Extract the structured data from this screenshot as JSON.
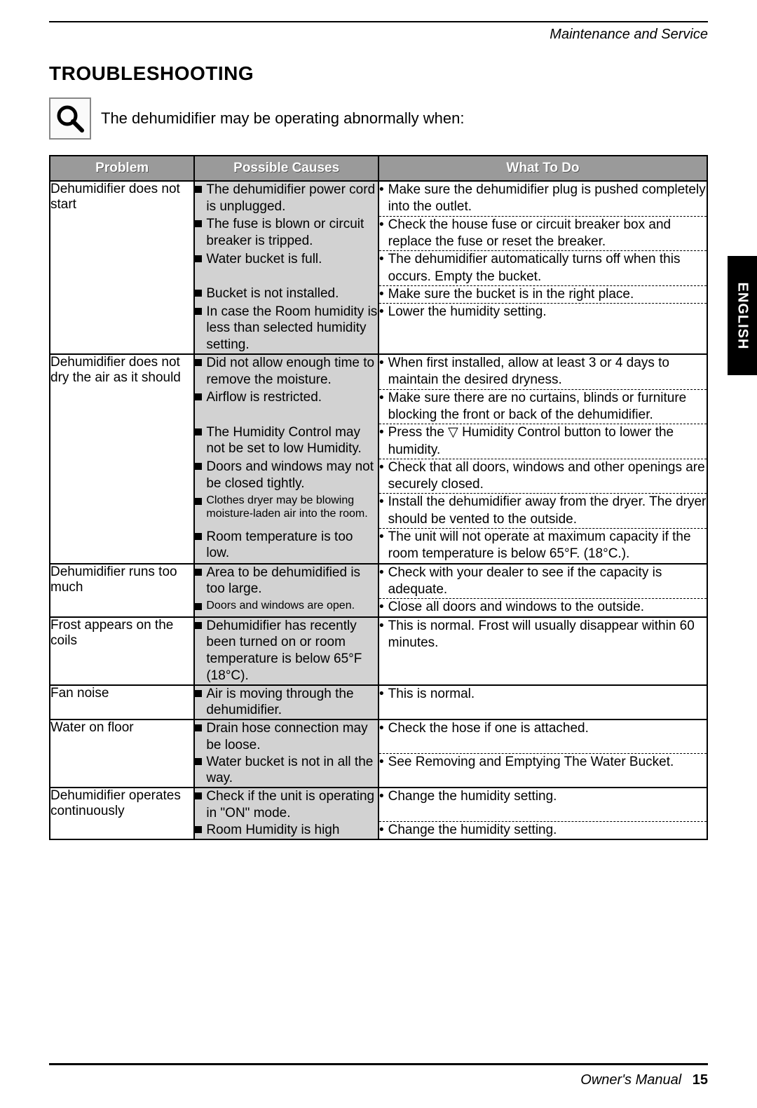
{
  "header": {
    "section": "Maintenance and Service"
  },
  "title": "TROUBLESHOOTING",
  "intro": "The dehumidifier may be operating abnormally when:",
  "sideTab": "ENGLISH",
  "columns": [
    "Problem",
    "Possible Causes",
    "What To Do"
  ],
  "colors": {
    "headerBg": "#9a9a9a",
    "headerText": "#ffffff",
    "causeBg": "#d2d2d2",
    "pageBg": "#ffffff",
    "text": "#000000",
    "dash": "#000000"
  },
  "fonts": {
    "title_pt": 28,
    "body_pt": 19,
    "header_pt": 19,
    "problem_pt": 20,
    "intro_pt": 22,
    "footer_pt": 20
  },
  "groups": [
    {
      "problem": "Dehumidifier does not start",
      "rows": [
        {
          "cause": "The dehumidifier power cord is unplugged.",
          "action": "Make sure the dehumidifier plug is pushed completely into the outlet."
        },
        {
          "cause": "The fuse is blown or circuit breaker is tripped.",
          "action": "Check the house fuse or circuit breaker box and replace the fuse or reset the breaker."
        },
        {
          "cause": "Water bucket is full.",
          "action": "The dehumidifier automatically turns off when this occurs. Empty the bucket."
        },
        {
          "cause": "Bucket is not installed.",
          "action": "Make sure the bucket is in the right place."
        },
        {
          "cause": "In case the Room humidity is less than selected humidity setting.",
          "action": "Lower the humidity setting."
        }
      ]
    },
    {
      "problem": "Dehumidifier does not dry the air as it should",
      "rows": [
        {
          "cause": "Did not allow enough time to remove the moisture.",
          "action": "When first installed, allow at least 3 or 4 days to maintain the desired dryness."
        },
        {
          "cause": "Airflow is restricted.",
          "action": "Make sure there are no curtains, blinds or furniture blocking the front or back of the dehumidifier."
        },
        {
          "cause": "The Humidity Control may not be set to low Humidity.",
          "action": "Press the ▽ Humidity Control button to lower the humidity."
        },
        {
          "cause": "Doors and windows may not be closed tightly.",
          "action": "Check that all doors, windows and other openings are securely closed."
        },
        {
          "cause": "Clothes dryer may be blowing moisture-laden air into the room.",
          "small": true,
          "action": "Install the dehumidifier away from the dryer. The dryer should be vented to the outside."
        },
        {
          "cause": "Room temperature is too low.",
          "action": "The unit will not operate at maximum capacity if the room temperature is below 65°F. (18°C.)."
        }
      ]
    },
    {
      "problem": "Dehumidifier runs too much",
      "rows": [
        {
          "cause": "Area to be dehumidified is too large.",
          "action": "Check with your dealer to see if the capacity is adequate."
        },
        {
          "cause": "Doors and windows are open.",
          "small": true,
          "action": "Close all doors and windows to the outside."
        }
      ]
    },
    {
      "problem": "Frost appears on the coils",
      "rows": [
        {
          "cause": "Dehumidifier has recently been turned on or room temperature is below 65°F (18°C).",
          "action": "This is normal. Frost will usually disappear within 60 minutes."
        }
      ]
    },
    {
      "problem": "Fan noise",
      "rows": [
        {
          "cause": "Air is moving through the dehumidifier.",
          "action": "This is normal."
        }
      ]
    },
    {
      "problem": "Water on floor",
      "rows": [
        {
          "cause": "Drain hose connection may be loose.",
          "action": "Check the hose if one is attached."
        },
        {
          "cause": "Water bucket is not in all the way.",
          "action": "See Removing and Emptying The Water Bucket."
        }
      ]
    },
    {
      "problem": "Dehumidifier operates continuously",
      "rows": [
        {
          "cause": "Check if the unit is operating in \"ON\" mode.",
          "action": "Change the humidity setting."
        },
        {
          "cause": "Room Humidity is high",
          "action": "Change the humidity setting."
        }
      ]
    }
  ],
  "footer": {
    "manual": "Owner's Manual",
    "page": "15"
  }
}
